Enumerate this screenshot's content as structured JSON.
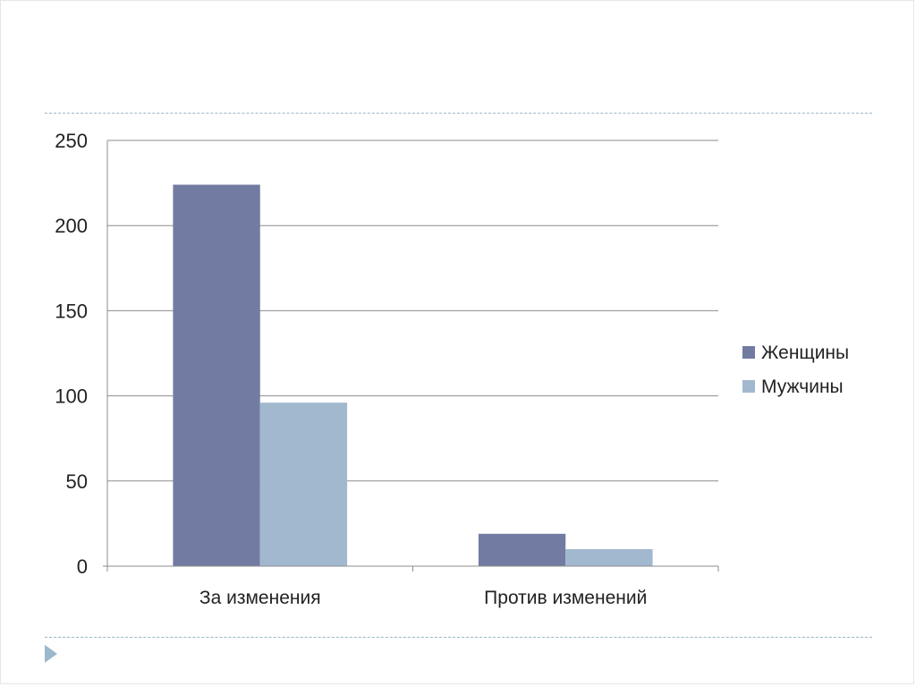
{
  "chart_data": {
    "type": "bar",
    "categories": [
      "За изменения",
      "Против изменений"
    ],
    "series": [
      {
        "name": "Женщины",
        "values": [
          224,
          19
        ],
        "color": "#727ba1"
      },
      {
        "name": "Мужчины",
        "values": [
          96,
          10
        ],
        "color": "#a1b8cf"
      }
    ],
    "ylim": [
      0,
      250
    ],
    "yticks": [
      0,
      50,
      100,
      150,
      200,
      250
    ],
    "title": "",
    "xlabel": "",
    "ylabel": "",
    "grid": true,
    "legend_position": "right"
  },
  "colors": {
    "gridline": "#8c8c8c",
    "divider": "#9ab7c9",
    "nav_arrow": "#9bb8cc"
  }
}
